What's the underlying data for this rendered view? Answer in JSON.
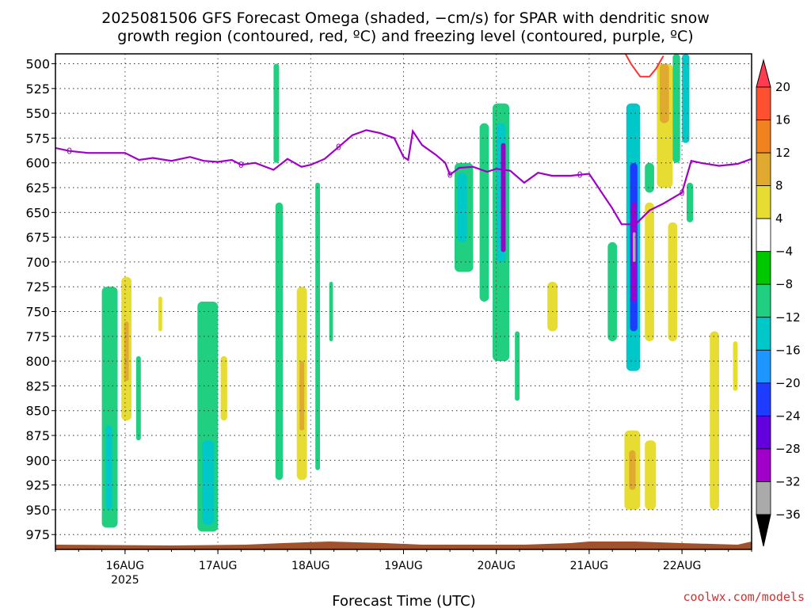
{
  "title_line1": "2025081506 GFS Forecast Omega (shaded, −cm/s) for SPAR with dendritic snow",
  "title_line2": "growth region (contoured, red, ºC) and freezing level (contoured, purple, ºC)",
  "xlabel": "Forecast Time (UTC)",
  "credit": "coolwx.com/models",
  "chart_data": {
    "type": "heatmap",
    "y_levels": [
      "500",
      "525",
      "550",
      "575",
      "600",
      "625",
      "650",
      "675",
      "700",
      "725",
      "750",
      "775",
      "800",
      "825",
      "850",
      "875",
      "900",
      "925",
      "950",
      "975"
    ],
    "x_ticks": [
      {
        "label": "16AUG",
        "sub": "2025",
        "day": 16
      },
      {
        "label": "17AUG",
        "sub": "",
        "day": 17
      },
      {
        "label": "18AUG",
        "sub": "",
        "day": 18
      },
      {
        "label": "19AUG",
        "sub": "",
        "day": 19
      },
      {
        "label": "20AUG",
        "sub": "",
        "day": 20
      },
      {
        "label": "21AUG",
        "sub": "",
        "day": 21
      },
      {
        "label": "22AUG",
        "sub": "",
        "day": 22
      }
    ],
    "xlim_days": [
      15.25,
      22.75
    ],
    "ylim_hpa": [
      490,
      990
    ],
    "colorbar": {
      "labels": [
        "20",
        "16",
        "12",
        "8",
        "4",
        "−4",
        "−8",
        "−12",
        "−16",
        "−20",
        "−24",
        "−28",
        "−32",
        "−36"
      ],
      "colors": [
        "#ff3c50",
        "#ff5030",
        "#f08220",
        "#e0aa30",
        "#e6dc32",
        "#ffffff",
        "#00c800",
        "#20d080",
        "#00c8c8",
        "#1e96ff",
        "#1e3cff",
        "#6400dc",
        "#a000c8",
        "#aaaaaa",
        "#000000"
      ]
    },
    "freezing_level": {
      "label": "0",
      "points": [
        [
          15.25,
          585
        ],
        [
          15.4,
          588
        ],
        [
          15.6,
          590
        ],
        [
          15.8,
          590
        ],
        [
          16.0,
          590
        ],
        [
          16.15,
          597
        ],
        [
          16.3,
          595
        ],
        [
          16.5,
          598
        ],
        [
          16.7,
          594
        ],
        [
          16.85,
          598
        ],
        [
          17.0,
          599
        ],
        [
          17.15,
          597
        ],
        [
          17.25,
          602
        ],
        [
          17.4,
          600
        ],
        [
          17.6,
          607
        ],
        [
          17.75,
          596
        ],
        [
          17.9,
          604
        ],
        [
          18.0,
          602
        ],
        [
          18.15,
          596
        ],
        [
          18.3,
          584
        ],
        [
          18.45,
          572
        ],
        [
          18.6,
          567
        ],
        [
          18.75,
          570
        ],
        [
          18.9,
          575
        ],
        [
          19.0,
          594
        ],
        [
          19.05,
          597
        ],
        [
          19.1,
          568
        ],
        [
          19.2,
          582
        ],
        [
          19.35,
          592
        ],
        [
          19.45,
          600
        ],
        [
          19.5,
          612
        ],
        [
          19.6,
          605
        ],
        [
          19.75,
          604
        ],
        [
          19.9,
          609
        ],
        [
          20.0,
          606
        ],
        [
          20.15,
          608
        ],
        [
          20.3,
          620
        ],
        [
          20.45,
          610
        ],
        [
          20.6,
          613
        ],
        [
          20.8,
          613
        ],
        [
          21.0,
          611
        ],
        [
          21.1,
          625
        ],
        [
          21.25,
          646
        ],
        [
          21.35,
          662
        ],
        [
          21.5,
          662
        ],
        [
          21.65,
          648
        ],
        [
          21.8,
          641
        ],
        [
          22.0,
          630
        ],
        [
          22.1,
          598
        ],
        [
          22.2,
          600
        ],
        [
          22.4,
          603
        ],
        [
          22.6,
          601
        ],
        [
          22.75,
          596
        ]
      ]
    },
    "dendritic_contour": {
      "points": [
        [
          21.38,
          488
        ],
        [
          21.45,
          500
        ],
        [
          21.55,
          513
        ],
        [
          21.65,
          513
        ],
        [
          21.72,
          505
        ],
        [
          21.8,
          492
        ]
      ]
    },
    "omega_cells": [
      {
        "x0": 15.75,
        "x1": 15.92,
        "p0": 725,
        "p1": 968,
        "v": -8
      },
      {
        "x0": 15.79,
        "x1": 15.86,
        "p0": 865,
        "p1": 950,
        "v": -12
      },
      {
        "x0": 15.96,
        "x1": 16.07,
        "p0": 715,
        "p1": 860,
        "v": 6
      },
      {
        "x0": 15.99,
        "x1": 16.04,
        "p0": 760,
        "p1": 820,
        "v": 10
      },
      {
        "x0": 16.12,
        "x1": 16.17,
        "p0": 795,
        "p1": 880,
        "v": -8
      },
      {
        "x0": 16.36,
        "x1": 16.4,
        "p0": 735,
        "p1": 770,
        "v": 6
      },
      {
        "x0": 16.78,
        "x1": 17.0,
        "p0": 740,
        "p1": 972,
        "v": -8
      },
      {
        "x0": 16.83,
        "x1": 16.96,
        "p0": 880,
        "p1": 965,
        "v": -12
      },
      {
        "x0": 17.03,
        "x1": 17.1,
        "p0": 795,
        "p1": 860,
        "v": 6
      },
      {
        "x0": 17.6,
        "x1": 17.66,
        "p0": 500,
        "p1": 600,
        "v": -8
      },
      {
        "x0": 17.62,
        "x1": 17.7,
        "p0": 640,
        "p1": 920,
        "v": -8
      },
      {
        "x0": 17.85,
        "x1": 17.96,
        "p0": 725,
        "p1": 920,
        "v": 6
      },
      {
        "x0": 17.88,
        "x1": 17.93,
        "p0": 800,
        "p1": 870,
        "v": 10
      },
      {
        "x0": 18.05,
        "x1": 18.1,
        "p0": 620,
        "p1": 910,
        "v": -8
      },
      {
        "x0": 18.2,
        "x1": 18.24,
        "p0": 720,
        "p1": 780,
        "v": -8
      },
      {
        "x0": 19.55,
        "x1": 19.75,
        "p0": 600,
        "p1": 710,
        "v": -8
      },
      {
        "x0": 19.58,
        "x1": 19.68,
        "p0": 610,
        "p1": 680,
        "v": -12
      },
      {
        "x0": 19.82,
        "x1": 19.92,
        "p0": 560,
        "p1": 740,
        "v": -8
      },
      {
        "x0": 19.96,
        "x1": 20.14,
        "p0": 540,
        "p1": 800,
        "v": -8
      },
      {
        "x0": 20.0,
        "x1": 20.1,
        "p0": 560,
        "p1": 700,
        "v": -12
      },
      {
        "x0": 20.05,
        "x1": 20.1,
        "p0": 580,
        "p1": 690,
        "v": -28
      },
      {
        "x0": 20.2,
        "x1": 20.25,
        "p0": 770,
        "p1": 840,
        "v": -8
      },
      {
        "x0": 20.55,
        "x1": 20.66,
        "p0": 720,
        "p1": 770,
        "v": 6
      },
      {
        "x0": 21.2,
        "x1": 21.3,
        "p0": 680,
        "p1": 780,
        "v": -8
      },
      {
        "x0": 21.4,
        "x1": 21.55,
        "p0": 540,
        "p1": 810,
        "v": -12
      },
      {
        "x0": 21.44,
        "x1": 21.52,
        "p0": 600,
        "p1": 770,
        "v": -20
      },
      {
        "x0": 21.46,
        "x1": 21.51,
        "p0": 640,
        "p1": 740,
        "v": -28
      },
      {
        "x0": 21.47,
        "x1": 21.5,
        "p0": 670,
        "p1": 700,
        "v": -32
      },
      {
        "x0": 21.6,
        "x1": 21.7,
        "p0": 600,
        "p1": 630,
        "v": -8
      },
      {
        "x0": 21.6,
        "x1": 21.7,
        "p0": 640,
        "p1": 780,
        "v": 6
      },
      {
        "x0": 21.38,
        "x1": 21.55,
        "p0": 870,
        "p1": 950,
        "v": 6
      },
      {
        "x0": 21.43,
        "x1": 21.5,
        "p0": 890,
        "p1": 930,
        "v": 10
      },
      {
        "x0": 21.6,
        "x1": 21.72,
        "p0": 880,
        "p1": 950,
        "v": 6
      },
      {
        "x0": 21.73,
        "x1": 21.9,
        "p0": 500,
        "p1": 625,
        "v": 6
      },
      {
        "x0": 21.76,
        "x1": 21.86,
        "p0": 500,
        "p1": 560,
        "v": 10
      },
      {
        "x0": 21.9,
        "x1": 21.98,
        "p0": 490,
        "p1": 600,
        "v": -8
      },
      {
        "x0": 21.85,
        "x1": 21.95,
        "p0": 660,
        "p1": 780,
        "v": 6
      },
      {
        "x0": 22.0,
        "x1": 22.08,
        "p0": 490,
        "p1": 580,
        "v": -12
      },
      {
        "x0": 22.05,
        "x1": 22.12,
        "p0": 620,
        "p1": 660,
        "v": -8
      },
      {
        "x0": 22.3,
        "x1": 22.4,
        "p0": 770,
        "p1": 950,
        "v": 6
      },
      {
        "x0": 22.55,
        "x1": 22.6,
        "p0": 780,
        "p1": 830,
        "v": 6
      }
    ]
  }
}
